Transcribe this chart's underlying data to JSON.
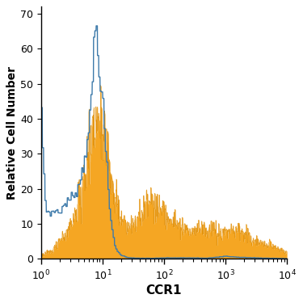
{
  "title": "",
  "xlabel": "CCR1",
  "ylabel": "Relative Cell Number",
  "xlim": [
    1,
    10000
  ],
  "ylim": [
    0,
    72
  ],
  "yticks": [
    0,
    10,
    20,
    30,
    40,
    50,
    60,
    70
  ],
  "blue_color": "#3d7aaa",
  "orange_color": "#f5a623",
  "orange_edge_color": "#e08c00",
  "bg_color": "#ffffff",
  "figsize": [
    3.75,
    3.75
  ],
  "dpi": 100,
  "blue_data_x": [
    1.0,
    1.2,
    1.5,
    1.8,
    2.0,
    2.3,
    2.6,
    3.0,
    3.3,
    3.6,
    4.0,
    4.3,
    4.7,
    5.0,
    5.3,
    5.7,
    6.0,
    6.3,
    6.6,
    7.0,
    7.2,
    7.4,
    7.6,
    7.8,
    8.0,
    8.3,
    8.6,
    9.0,
    9.5,
    10.0,
    10.5,
    11.0,
    11.5,
    12.0,
    12.5,
    13.0,
    14.0,
    15.0,
    16.0,
    17.0,
    18.0,
    19.0,
    20.0,
    22.0,
    25.0,
    30.0,
    35.0,
    40.0,
    50.0,
    60.0,
    80.0,
    100.0,
    150.0,
    200.0,
    300.0,
    500.0,
    1000.0,
    2000.0,
    5000.0,
    10000.0
  ],
  "blue_data_y": [
    44,
    14,
    13,
    14,
    13,
    15,
    16,
    17,
    18,
    19,
    20,
    22,
    25,
    27,
    30,
    35,
    38,
    40,
    43,
    52,
    60,
    63,
    65,
    67,
    66,
    62,
    58,
    55,
    50,
    45,
    40,
    35,
    30,
    25,
    20,
    15,
    10,
    7,
    4,
    2.5,
    2,
    1.5,
    1.2,
    0.8,
    0.5,
    0.3,
    0.2,
    0.2,
    0.2,
    0.2,
    0.2,
    0.3,
    0.3,
    0.3,
    0.3,
    0.2,
    0.8,
    0.4,
    0.2,
    0.1
  ],
  "orange_data_x": [
    1.0,
    1.3,
    1.6,
    2.0,
    2.5,
    3.0,
    3.5,
    4.0,
    4.5,
    5.0,
    5.5,
    6.0,
    6.5,
    7.0,
    7.5,
    8.0,
    8.5,
    9.0,
    9.5,
    10.0,
    10.5,
    11.0,
    11.5,
    12.0,
    12.5,
    13.0,
    13.5,
    14.0,
    15.0,
    16.0,
    17.0,
    18.0,
    19.0,
    20.0,
    22.0,
    25.0,
    28.0,
    32.0,
    36.0,
    40.0,
    45.0,
    50.0,
    55.0,
    60.0,
    70.0,
    80.0,
    90.0,
    100.0,
    120.0,
    150.0,
    200.0,
    250.0,
    300.0,
    400.0,
    500.0,
    600.0,
    700.0,
    800.0,
    1000.0,
    1200.0,
    1500.0,
    2000.0,
    3000.0,
    5000.0,
    7000.0,
    10000.0
  ],
  "orange_data_y": [
    1,
    2,
    3,
    5,
    7,
    9,
    12,
    15,
    18,
    22,
    26,
    30,
    34,
    37,
    40,
    42,
    44,
    43,
    42,
    40,
    38,
    35,
    33,
    30,
    28,
    26,
    24,
    22,
    18,
    16,
    15,
    14,
    13,
    12,
    11,
    10,
    10,
    10,
    11,
    12,
    13,
    15,
    16,
    17,
    16,
    15,
    14,
    13,
    12,
    11,
    9,
    8,
    8,
    8,
    8,
    9,
    9,
    8,
    8,
    8,
    8,
    7,
    5,
    4,
    3,
    2
  ]
}
